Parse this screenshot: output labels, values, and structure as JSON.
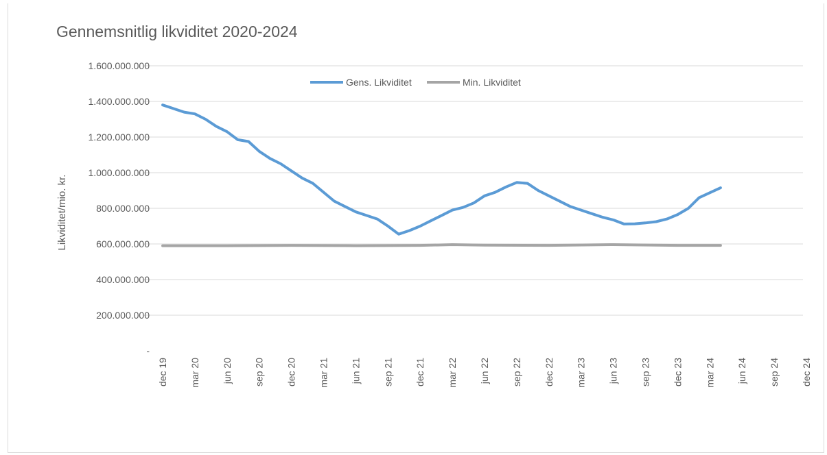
{
  "chart_data": {
    "type": "line",
    "title": "Gennemsnitlig likviditet 2020-2024",
    "ylabel": "Likviditet/mio. kr.",
    "xlabel": "",
    "ylim": [
      0,
      1600000000
    ],
    "y_ticks": [
      {
        "value": 0,
        "label": "-"
      },
      {
        "value": 200000000,
        "label": "200.000.000"
      },
      {
        "value": 400000000,
        "label": "400.000.000"
      },
      {
        "value": 600000000,
        "label": "600.000.000"
      },
      {
        "value": 800000000,
        "label": "800.000.000"
      },
      {
        "value": 1000000000,
        "label": "1.000.000.000"
      },
      {
        "value": 1200000000,
        "label": "1.200.000.000"
      },
      {
        "value": 1400000000,
        "label": "1.400.000.000"
      },
      {
        "value": 1600000000,
        "label": "1.600.000.000"
      }
    ],
    "x_ticks": [
      "dec 19",
      "mar 20",
      "jun 20",
      "sep 20",
      "dec 20",
      "mar 21",
      "jun 21",
      "sep 21",
      "dec 21",
      "mar 22",
      "jun 22",
      "sep 22",
      "dec 22",
      "mar 23",
      "jun 23",
      "sep 23",
      "dec 23",
      "mar 24",
      "jun 24",
      "sep 24",
      "dec 24"
    ],
    "grid": true,
    "legend_position": "top-center",
    "series": [
      {
        "name": "Gens. Likviditet",
        "color": "#5b9bd5",
        "x": [
          0,
          1,
          2,
          3,
          4,
          5,
          6,
          7,
          8,
          9,
          10,
          11,
          12,
          13,
          14,
          15,
          16,
          17,
          18,
          19,
          20,
          21,
          22,
          23,
          24,
          25,
          26,
          27,
          28,
          29,
          30,
          31,
          32,
          33,
          34,
          35,
          36,
          37,
          38,
          39,
          40,
          41,
          42,
          43,
          44,
          45,
          46,
          47,
          48,
          49,
          50
        ],
        "values": [
          1380000000,
          1360000000,
          1340000000,
          1330000000,
          1300000000,
          1260000000,
          1230000000,
          1185000000,
          1175000000,
          1120000000,
          1080000000,
          1050000000,
          1010000000,
          970000000,
          940000000,
          890000000,
          840000000,
          810000000,
          780000000,
          760000000,
          740000000,
          700000000,
          655000000,
          675000000,
          700000000,
          730000000,
          760000000,
          790000000,
          805000000,
          830000000,
          870000000,
          890000000,
          920000000,
          945000000,
          940000000,
          900000000,
          870000000,
          840000000,
          810000000,
          790000000,
          770000000,
          750000000,
          735000000,
          712000000,
          713000000,
          718000000,
          725000000,
          740000000,
          765000000,
          800000000,
          860000000
        ],
        "x_end": 52,
        "value_end": 915000000
      },
      {
        "name": "Min. Likviditet",
        "color": "#a5a5a5",
        "x": [
          0,
          6,
          12,
          18,
          24,
          27,
          30,
          36,
          42,
          48,
          52
        ],
        "values": [
          590000000,
          590000000,
          592000000,
          590000000,
          592000000,
          596000000,
          593000000,
          592000000,
          596000000,
          592000000,
          592000000
        ]
      }
    ]
  }
}
